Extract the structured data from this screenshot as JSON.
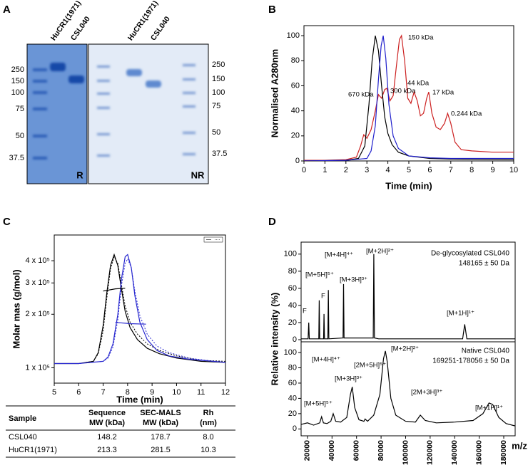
{
  "panel_labels": [
    "A",
    "B",
    "C",
    "D"
  ],
  "gel": {
    "lanes_reduced": [
      "HuCR1(1971)",
      "CSL040"
    ],
    "lanes_nonreduced": [
      "HuCR1(1971)",
      "CSL040"
    ],
    "markers_left": [
      "250",
      "150",
      "100",
      "75",
      "50",
      "37.5"
    ],
    "markers_right": [
      "250",
      "150",
      "100",
      "75",
      "50",
      "37.5"
    ],
    "condition_reduced": "R",
    "condition_nonreduced": "NR"
  },
  "chart_data": [
    {
      "type": "line",
      "ylabel": "Normalised A280nm",
      "xlabel": "Time (min)",
      "xlim": [
        0,
        10
      ],
      "xticks": [
        0,
        1,
        2,
        3,
        4,
        5,
        6,
        7,
        8,
        9,
        10
      ],
      "ylim": [
        0,
        108
      ],
      "yticks": [
        0,
        20,
        40,
        60,
        80,
        100
      ],
      "annotations": [
        "670 kDa",
        "300 kDa",
        "150 kDa",
        "44 kDa",
        "17 kDa",
        "0.244 kDa"
      ],
      "series": [
        {
          "color": "#cc2020",
          "x": [
            0,
            1,
            2,
            2.5,
            2.7,
            2.85,
            3.0,
            3.2,
            3.4,
            3.55,
            3.7,
            3.85,
            3.95,
            4.1,
            4.25,
            4.4,
            4.55,
            4.65,
            4.8,
            4.95,
            5.1,
            5.25,
            5.4,
            5.55,
            5.7,
            5.85,
            5.95,
            6.1,
            6.3,
            6.5,
            6.7,
            6.85,
            7.0,
            7.2,
            7.5,
            8,
            9,
            10
          ],
          "values": [
            0.5,
            0.5,
            1,
            3,
            12,
            21,
            18,
            25,
            40,
            53,
            50,
            57,
            58,
            48,
            52,
            75,
            97,
            100,
            80,
            50,
            46,
            55,
            48,
            36,
            38,
            50,
            55,
            38,
            27,
            25,
            30,
            38,
            30,
            15,
            9,
            8,
            7,
            7
          ]
        },
        {
          "color": "#000000",
          "x": [
            0,
            2,
            2.6,
            2.9,
            3.1,
            3.25,
            3.4,
            3.55,
            3.7,
            3.85,
            4.0,
            4.2,
            4.5,
            5,
            6,
            7,
            10
          ],
          "values": [
            0,
            0.5,
            2,
            12,
            45,
            80,
            100,
            88,
            60,
            35,
            22,
            13,
            7,
            4,
            2,
            1.5,
            1
          ]
        },
        {
          "color": "#2020cc",
          "x": [
            0,
            2,
            3,
            3.2,
            3.4,
            3.55,
            3.68,
            3.78,
            3.9,
            4.05,
            4.25,
            4.5,
            5,
            6,
            7,
            10
          ],
          "values": [
            0,
            0.5,
            2,
            8,
            28,
            65,
            92,
            100,
            82,
            45,
            20,
            10,
            4,
            2.5,
            2,
            2
          ]
        }
      ]
    },
    {
      "type": "line",
      "ylabel": "Molar mas (g/mol)",
      "xlabel": "Time (min)",
      "xlim": [
        5,
        12
      ],
      "xticks": [
        5,
        6,
        7,
        8,
        9,
        10,
        11,
        12
      ],
      "ylim": [
        82000,
        558000
      ],
      "ylog": true,
      "yticks": [
        {
          "value": 100000,
          "label": "1 x 10⁵"
        },
        {
          "value": 200000,
          "label": "2 x 10⁵"
        },
        {
          "value": 300000,
          "label": "3 x 10⁵"
        },
        {
          "value": 400000,
          "label": "4 x 10⁵"
        }
      ],
      "y2lim": [
        -0.18,
        1.18
      ],
      "series": [
        {
          "color": "#000000",
          "axis": "y2",
          "x": [
            5,
            6,
            6.6,
            6.8,
            7.0,
            7.15,
            7.3,
            7.45,
            7.6,
            7.75,
            7.9,
            8.1,
            8.4,
            8.8,
            9.3,
            10,
            11,
            12
          ],
          "values": [
            0,
            0,
            0.02,
            0.1,
            0.35,
            0.65,
            0.9,
            1.0,
            0.9,
            0.68,
            0.48,
            0.33,
            0.22,
            0.14,
            0.09,
            0.05,
            0.02,
            0.01
          ]
        },
        {
          "color": "#000000",
          "axis": "y2",
          "dash": true,
          "x": [
            5,
            6,
            6.6,
            6.8,
            7.0,
            7.15,
            7.3,
            7.45,
            7.6,
            7.75,
            7.9,
            8.1,
            8.4,
            8.8,
            9.3,
            10,
            11,
            12
          ],
          "values": [
            0,
            0,
            0.02,
            0.09,
            0.3,
            0.6,
            0.87,
            0.98,
            0.92,
            0.72,
            0.53,
            0.38,
            0.27,
            0.18,
            0.12,
            0.07,
            0.03,
            0.02
          ]
        },
        {
          "color": "#2a2ad0",
          "axis": "y2",
          "x": [
            5,
            6,
            7,
            7.2,
            7.4,
            7.6,
            7.75,
            7.9,
            8.0,
            8.15,
            8.3,
            8.5,
            8.8,
            9.2,
            9.7,
            10.5,
            11.5,
            12
          ],
          "values": [
            0,
            0,
            0.02,
            0.06,
            0.18,
            0.45,
            0.78,
            0.98,
            1.0,
            0.88,
            0.62,
            0.38,
            0.22,
            0.12,
            0.07,
            0.04,
            0.02,
            0.01
          ]
        },
        {
          "color": "#2a2ad0",
          "axis": "y2",
          "dash": true,
          "x": [
            5,
            6,
            7,
            7.2,
            7.4,
            7.6,
            7.75,
            7.9,
            8.0,
            8.15,
            8.3,
            8.5,
            8.8,
            9.2,
            9.7,
            10.5,
            11.5,
            12
          ],
          "values": [
            0,
            0,
            0.02,
            0.05,
            0.15,
            0.4,
            0.72,
            0.92,
            0.96,
            0.88,
            0.66,
            0.44,
            0.27,
            0.16,
            0.1,
            0.05,
            0.02,
            0.01
          ]
        },
        {
          "color": "#000000",
          "x": [
            7.0,
            7.5,
            7.9
          ],
          "values": [
            270000,
            278000,
            280000
          ]
        },
        {
          "color": "#2a2ad0",
          "x": [
            7.5,
            8.1,
            8.75
          ],
          "values": [
            180000,
            177000,
            176000
          ]
        }
      ]
    },
    {
      "type": "line",
      "ylabel": "Relative intensity (%)",
      "xlim": [
        14800,
        189300
      ],
      "ylim": [
        -2.5,
        114
      ],
      "yticks": [
        0,
        20,
        40,
        60,
        80,
        100
      ],
      "sample_label": "De-glycosylated CSL040",
      "mass_label": "148165 ± 50 Da",
      "annotations": [
        "F",
        "[M+5H]⁵⁺",
        "F",
        "[M+4H]⁴⁺",
        "[M+3H]³⁺",
        "[M+2H]²⁺",
        "[M+1H]¹⁺"
      ],
      "series": [
        {
          "color": "#000000",
          "x": [
            15000,
            20500,
            21000,
            21500,
            29200,
            29600,
            30000,
            33100,
            33500,
            33900,
            36600,
            37000,
            37400,
            49000,
            49400,
            49800,
            73600,
            74100,
            74600,
            78000,
            146500,
            148200,
            149900,
            189000
          ],
          "values": [
            1,
            1,
            20,
            1,
            1,
            46,
            1,
            1,
            30,
            1,
            1,
            58,
            1,
            2,
            65,
            2,
            2,
            100,
            2,
            1,
            1,
            18,
            1,
            1
          ]
        }
      ]
    },
    {
      "type": "line",
      "xlabel": "m/z",
      "xlim": [
        14800,
        189300
      ],
      "xticks": [
        20000,
        40000,
        60000,
        80000,
        100000,
        120000,
        140000,
        160000,
        180000
      ],
      "ylim": [
        -9,
        114
      ],
      "yticks": [
        0,
        20,
        40,
        60,
        80,
        100
      ],
      "sample_label": "Native CSL040",
      "mass_label": "169251-178056 ± 50 Da",
      "annotations": [
        "[M+5H]⁵⁺",
        "[M+4H]⁴⁺",
        "[M+3H]³⁺",
        "[2M+5H]⁵⁺",
        "[M+2H]²⁺",
        "[2M+3H]³⁺",
        "[M+1H]¹⁺"
      ],
      "series": [
        {
          "color": "#000000",
          "x": [
            15000,
            20000,
            25000,
            30000,
            31500,
            33000,
            36000,
            39000,
            41000,
            43000,
            47000,
            52000,
            55000,
            56500,
            58500,
            62000,
            66000,
            67000,
            69000,
            74000,
            79000,
            82000,
            83500,
            85000,
            88000,
            92000,
            100000,
            108000,
            112000,
            116000,
            125000,
            140000,
            155000,
            163000,
            168000,
            171000,
            176000,
            182000,
            189000
          ],
          "values": [
            6,
            8,
            5,
            8,
            16,
            8,
            7,
            10,
            20,
            10,
            9,
            15,
            45,
            55,
            28,
            12,
            10,
            13,
            10,
            18,
            45,
            92,
            102,
            88,
            40,
            18,
            10,
            9,
            18,
            11,
            8,
            9,
            11,
            20,
            34,
            32,
            15,
            7,
            4
          ]
        }
      ]
    }
  ],
  "table": {
    "header": [
      [
        "Sample"
      ],
      [
        "Sequence",
        "MW (kDa)"
      ],
      [
        "SEC-MALS",
        "MW (kDa)"
      ],
      [
        "Rh",
        "(nm)"
      ]
    ],
    "rows": [
      [
        "CSL040",
        "148.2",
        "178.7",
        "8.0"
      ],
      [
        "HuCR1(1971)",
        "213.3",
        "281.5",
        "10.3"
      ]
    ]
  }
}
